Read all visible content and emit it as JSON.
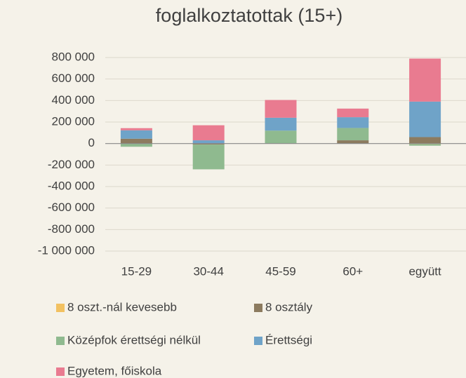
{
  "chart_data": {
    "type": "stacked_bar",
    "title": "foglalkoztatottak (15+)",
    "categories": [
      "15-29",
      "30-44",
      "45-59",
      "60+",
      "együtt"
    ],
    "series": [
      {
        "name": "8 oszt.-nál kevesebb",
        "color": "#f2c161",
        "values": [
          0,
          0,
          0,
          0,
          -5000
        ]
      },
      {
        "name": "8 osztály",
        "color": "#8c7b5f",
        "values": [
          45000,
          -10000,
          0,
          30000,
          60000
        ]
      },
      {
        "name": "Középfok érettségi nélkül",
        "color": "#8fba8f",
        "values": [
          -30000,
          -230000,
          120000,
          115000,
          -15000
        ]
      },
      {
        "name": "Érettségi",
        "color": "#6fa3c8",
        "values": [
          78000,
          30000,
          120000,
          100000,
          330000
        ]
      },
      {
        "name": "Egyetem, főiskola",
        "color": "#e97b90",
        "values": [
          20000,
          140000,
          165000,
          80000,
          400000
        ]
      }
    ],
    "ylim": [
      -1000000,
      800000
    ],
    "yticks": [
      {
        "value": -1000000,
        "label": "-1 000 000"
      },
      {
        "value": -800000,
        "label": "-800 000"
      },
      {
        "value": -600000,
        "label": "-600 000"
      },
      {
        "value": -400000,
        "label": "-400 000"
      },
      {
        "value": -200000,
        "label": "-200 000"
      },
      0,
      {
        "value": 200000,
        "label": "200 000"
      },
      {
        "value": 400000,
        "label": "400 000"
      },
      {
        "value": 600000,
        "label": "600 000"
      },
      {
        "value": 800000,
        "label": "800 000"
      }
    ],
    "grid": true
  }
}
